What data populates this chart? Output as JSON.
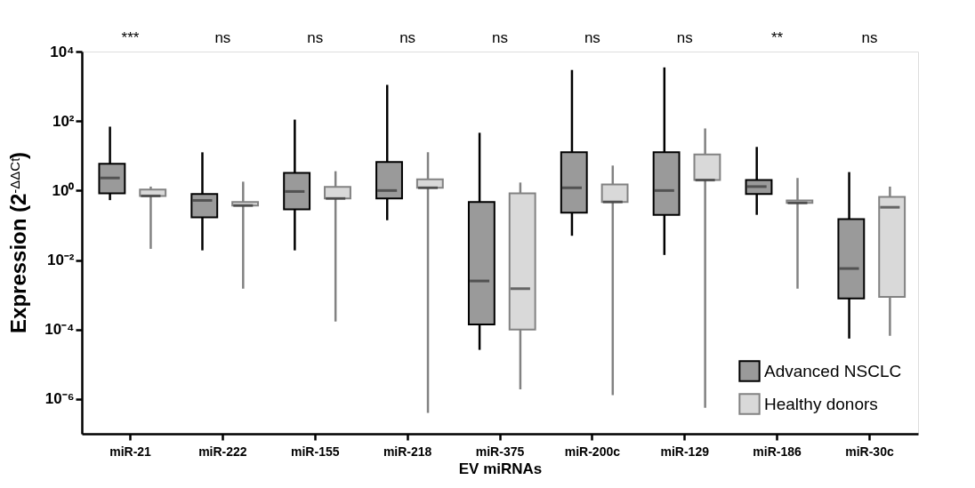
{
  "chart_data": {
    "type": "box",
    "ylabel": "Expression (2$^{-ΔΔCt}$)",
    "xlabel": "EV miRNAs",
    "categories": [
      "miR-21",
      "miR-222",
      "miR-155",
      "miR-218",
      "miR-375",
      "miR-200c",
      "miR-129",
      "miR-186",
      "miR-30c"
    ],
    "log": "y",
    "ylim": [
      1e-07,
      10000
    ],
    "yticks": [
      {
        "value": 1e-06,
        "label": "10⁻⁶"
      },
      {
        "value": 0.0001,
        "label": "10⁻⁴"
      },
      {
        "value": 0.01,
        "label": "10⁻²"
      },
      {
        "value": 1,
        "label": "10⁰"
      },
      {
        "value": 100,
        "label": "10²"
      },
      {
        "value": 10000,
        "label": "10⁴"
      }
    ],
    "grid": false,
    "legend": "bottom right",
    "series": [
      {
        "name": "Advanced NSCLC",
        "color": "#9a9a9a",
        "boxes": [
          {
            "low": 0.53,
            "q1": 0.83,
            "median": 2.3,
            "q3": 5.9,
            "high": 69
          },
          {
            "low": 0.019,
            "q1": 0.17,
            "median": 0.52,
            "q3": 0.79,
            "high": 12.6
          },
          {
            "low": 0.019,
            "q1": 0.29,
            "median": 0.94,
            "q3": 3.2,
            "high": 110
          },
          {
            "low": 0.14,
            "q1": 0.59,
            "median": 1.0,
            "q3": 6.6,
            "high": 1100
          },
          {
            "low": 2.6e-05,
            "q1": 0.00014,
            "median": 0.0025,
            "q3": 0.47,
            "high": 46
          },
          {
            "low": 0.05,
            "q1": 0.23,
            "median": 1.2,
            "q3": 12.6,
            "high": 2950
          },
          {
            "low": 0.014,
            "q1": 0.2,
            "median": 1.0,
            "q3": 12.6,
            "high": 3500
          },
          {
            "low": 0.2,
            "q1": 0.79,
            "median": 1.3,
            "q3": 2.0,
            "high": 18
          },
          {
            "low": 5.5e-05,
            "q1": 0.00078,
            "median": 0.0057,
            "q3": 0.15,
            "high": 3.4
          }
        ]
      },
      {
        "name": "Healthy donors",
        "color": "#d9d9d9",
        "boxes": [
          {
            "low": 0.021,
            "q1": 0.7,
            "median": 0.7,
            "q3": 1.07,
            "high": 1.3
          },
          {
            "low": 0.0015,
            "q1": 0.37,
            "median": 0.37,
            "q3": 0.47,
            "high": 1.8
          },
          {
            "low": 0.00017,
            "q1": 0.59,
            "median": 0.59,
            "q3": 1.27,
            "high": 3.6
          },
          {
            "low": 4e-07,
            "q1": 1.2,
            "median": 1.2,
            "q3": 2.1,
            "high": 12.6
          },
          {
            "low": 1.9e-06,
            "q1": 0.0001,
            "median": 0.0015,
            "q3": 0.83,
            "high": 1.7
          },
          {
            "low": 1.3e-06,
            "q1": 0.47,
            "median": 0.47,
            "q3": 1.5,
            "high": 5.2
          },
          {
            "low": 5.6e-07,
            "q1": 2.0,
            "median": 2.0,
            "q3": 11,
            "high": 61
          },
          {
            "low": 0.0015,
            "q1": 0.44,
            "median": 0.44,
            "q3": 0.52,
            "high": 2.3
          },
          {
            "low": 6.6e-05,
            "q1": 0.00087,
            "median": 0.33,
            "q3": 0.66,
            "high": 1.3
          }
        ]
      }
    ],
    "annotations": [
      "***",
      "ns",
      "ns",
      "ns",
      "ns",
      "ns",
      "ns",
      "**",
      "ns"
    ]
  }
}
